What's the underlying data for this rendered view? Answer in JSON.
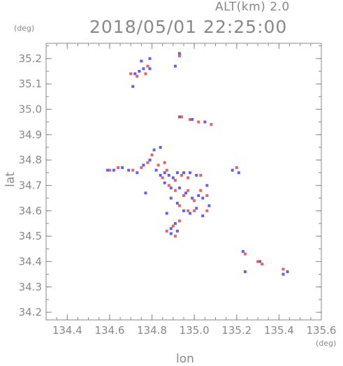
{
  "header": {
    "alt_label": "ALT(km)  2.0",
    "time_label": "2018/05/01 22:25:00",
    "y_unit": "(deg)",
    "x_unit": "(deg)"
  },
  "chart_data": {
    "type": "scatter",
    "title": "2018/05/01 22:25:00",
    "subtitle": "ALT(km)  2.0",
    "xlabel": "lon",
    "ylabel": "lat",
    "xlim": [
      134.3,
      135.6
    ],
    "ylim": [
      34.17,
      35.26
    ],
    "xticks": [
      134.4,
      134.6,
      134.8,
      135.0,
      135.2,
      135.4,
      135.6
    ],
    "xtick_labels": [
      "134.4",
      "134.6",
      "134.8",
      "135.0",
      "135.2",
      "135.4",
      "135.6"
    ],
    "yticks": [
      34.2,
      34.3,
      34.4,
      34.5,
      34.6,
      34.7,
      34.8,
      34.9,
      35.0,
      35.1,
      35.2
    ],
    "ytick_labels": [
      "34.2",
      "34.3",
      "34.4",
      "34.5",
      "34.6",
      "34.7",
      "34.8",
      "34.9",
      "35.0",
      "35.1",
      "35.2"
    ],
    "grid": false,
    "colors": {
      "positive": "#ee4444",
      "negative": "#4444ee",
      "axis": "#888888"
    },
    "series": [
      {
        "values": [
          [
            134.72,
            35.14
          ],
          [
            134.74,
            35.15
          ],
          [
            134.76,
            35.16
          ],
          [
            134.79,
            35.16
          ],
          [
            134.75,
            35.19
          ],
          [
            134.79,
            35.2
          ],
          [
            134.91,
            35.17
          ],
          [
            134.93,
            35.22
          ],
          [
            134.71,
            35.09
          ],
          [
            134.93,
            34.97
          ],
          [
            134.99,
            34.96
          ],
          [
            135.05,
            34.95
          ],
          [
            134.59,
            34.76
          ],
          [
            134.62,
            34.76
          ],
          [
            134.66,
            34.77
          ],
          [
            134.69,
            34.76
          ],
          [
            134.73,
            34.75
          ],
          [
            134.76,
            34.78
          ],
          [
            134.79,
            34.8
          ],
          [
            134.81,
            34.84
          ],
          [
            134.84,
            34.85
          ],
          [
            134.82,
            34.76
          ],
          [
            134.84,
            34.74
          ],
          [
            134.86,
            34.75
          ],
          [
            134.88,
            34.74
          ],
          [
            134.9,
            34.73
          ],
          [
            134.92,
            34.75
          ],
          [
            134.95,
            34.75
          ],
          [
            134.98,
            34.75
          ],
          [
            135.01,
            34.74
          ],
          [
            134.86,
            34.71
          ],
          [
            134.89,
            34.69
          ],
          [
            134.93,
            34.69
          ],
          [
            134.96,
            34.67
          ],
          [
            134.99,
            34.65
          ],
          [
            135.02,
            34.66
          ],
          [
            135.04,
            34.65
          ],
          [
            135.06,
            34.7
          ],
          [
            135.07,
            34.62
          ],
          [
            134.89,
            34.65
          ],
          [
            134.92,
            34.63
          ],
          [
            134.95,
            34.6
          ],
          [
            134.98,
            34.59
          ],
          [
            135.01,
            34.61
          ],
          [
            135.04,
            34.58
          ],
          [
            134.87,
            34.59
          ],
          [
            134.89,
            34.53
          ],
          [
            134.91,
            34.55
          ],
          [
            134.92,
            34.52
          ],
          [
            134.89,
            34.51
          ],
          [
            135.18,
            34.76
          ],
          [
            135.21,
            34.75
          ],
          [
            135.23,
            34.44
          ],
          [
            135.24,
            34.36
          ],
          [
            135.31,
            34.4
          ],
          [
            135.42,
            34.35
          ],
          [
            135.44,
            34.36
          ],
          [
            134.77,
            34.67
          ]
        ]
      },
      {
        "values": [
          [
            134.7,
            35.14
          ],
          [
            134.73,
            35.13
          ],
          [
            134.77,
            35.14
          ],
          [
            134.78,
            35.17
          ],
          [
            134.93,
            35.21
          ],
          [
            134.94,
            34.97
          ],
          [
            134.98,
            34.96
          ],
          [
            135.02,
            34.95
          ],
          [
            135.08,
            34.94
          ],
          [
            134.6,
            34.76
          ],
          [
            134.64,
            34.77
          ],
          [
            134.71,
            34.76
          ],
          [
            134.75,
            34.77
          ],
          [
            134.78,
            34.79
          ],
          [
            134.8,
            34.82
          ],
          [
            134.83,
            34.78
          ],
          [
            134.85,
            34.73
          ],
          [
            134.87,
            34.76
          ],
          [
            134.91,
            34.72
          ],
          [
            134.94,
            34.74
          ],
          [
            134.97,
            34.73
          ],
          [
            135.03,
            34.74
          ],
          [
            134.88,
            34.7
          ],
          [
            134.91,
            34.68
          ],
          [
            134.95,
            34.66
          ],
          [
            134.97,
            34.68
          ],
          [
            135.0,
            34.64
          ],
          [
            135.03,
            34.68
          ],
          [
            135.06,
            34.66
          ],
          [
            135.06,
            34.6
          ],
          [
            134.93,
            34.62
          ],
          [
            134.97,
            34.6
          ],
          [
            135.0,
            34.6
          ],
          [
            134.93,
            34.56
          ],
          [
            134.9,
            34.54
          ],
          [
            134.87,
            34.52
          ],
          [
            134.91,
            34.5
          ],
          [
            135.2,
            34.77
          ],
          [
            135.24,
            34.43
          ],
          [
            135.3,
            34.4
          ],
          [
            135.32,
            34.39
          ],
          [
            135.42,
            34.37
          ],
          [
            134.86,
            34.79
          ]
        ]
      }
    ]
  }
}
